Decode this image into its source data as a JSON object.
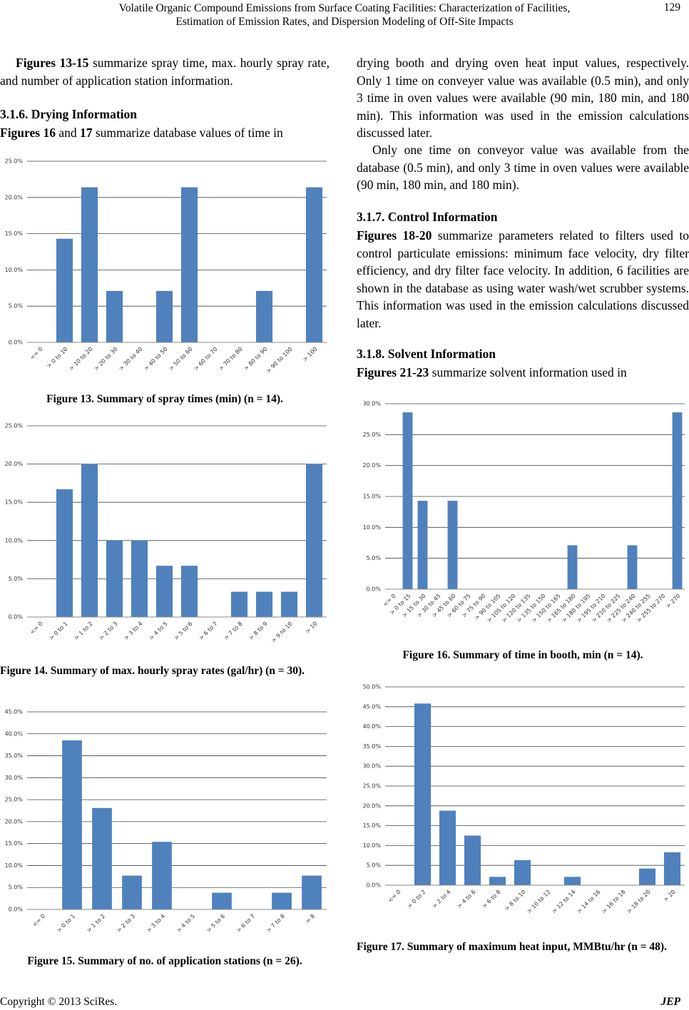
{
  "header": {
    "title": [
      "Volatile Organic Compound Emissions from Surface Coating Facilities: Characterization of Facilities,",
      "Estimation of Emission Rates, and Dispersion Modeling of Off-Site Impacts"
    ],
    "page": "129"
  },
  "left": {
    "p0": [
      "Figures 13-15",
      " summarize spray time, max. hourly spray rate, and number of application station information."
    ],
    "h0": "3.1.6. Drying Information",
    "p1": [
      "Figures 16",
      " and ",
      "17",
      " summarize database values of time in"
    ]
  },
  "right": {
    "p0": "drying booth and drying oven heat input values, respectively. Only 1 time on conveyer value was available (0.5 min), and only 3 time in oven values were available (90 min, 180 min, and 180 min). This information was used in the emission calculations discussed later.",
    "p1": "Only one time on conveyor value was available from the database (0.5 min), and only 3 time in oven values were available (90 min, 180 min, and 180 min).",
    "h0": "3.1.7. Control Information",
    "p2": [
      "Figures 18-20",
      " summarize parameters related to filters used to control particulate emissions: minimum face velocity, dry filter efficiency, and dry filter face velocity. In addition, 6 facilities are shown in the database as using water wash/wet scrubber systems. This information was used in the emission calculations discussed later."
    ],
    "h1": "3.1.8. Solvent Information",
    "p3": [
      "Figures 21-23",
      " summarize solvent information used in"
    ]
  },
  "footer": {
    "copyright": "Copyright © 2013 SciRes.",
    "journal": "JEP"
  },
  "chart_data": [
    {
      "type": "bar",
      "caption": "Figure 13. Summary of spray times (min) (n = 14).",
      "color": "#4f81bd",
      "grid": true,
      "categories": [
        "<= 0",
        "> 0 to 10",
        "> 10 to 20",
        "> 20 to 30",
        "> 30 to 40",
        "> 40 to 50",
        "> 50 to 60",
        "> 60 to 70",
        "> 70 to 80",
        "> 80 to 90",
        "> 90 to 100",
        "> 100"
      ],
      "values": [
        0,
        14.3,
        21.4,
        7.1,
        0,
        7.1,
        21.4,
        0,
        0,
        7.1,
        0,
        21.4
      ],
      "ylim": [
        0,
        25
      ],
      "yticks": [
        {
          "value": 0,
          "label": "0.0%"
        },
        {
          "value": 5,
          "label": "5.0%"
        },
        {
          "value": 10,
          "label": "10.0%"
        },
        {
          "value": 15,
          "label": "15.0%"
        },
        {
          "value": 20,
          "label": "20.0%"
        },
        {
          "value": 25,
          "label": "25.0%"
        }
      ]
    },
    {
      "type": "bar",
      "caption": "Figure 14. Summary of max. hourly spray rates (gal/hr) (n = 30).",
      "color": "#4f81bd",
      "grid": true,
      "categories": [
        "<= 0",
        "> 0 to 1",
        "> 1 to 2",
        "> 2 to 3",
        "> 3 to 4",
        "> 4 to 5",
        "> 5 to 6",
        "> 6 to 7",
        "> 7 to 8",
        "> 8 to 9",
        "> 9 to 10",
        "> 10"
      ],
      "values": [
        0,
        16.7,
        20,
        10,
        10,
        6.7,
        6.7,
        0,
        3.3,
        3.3,
        3.3,
        20
      ],
      "ylim": [
        0,
        25
      ],
      "yticks": [
        {
          "value": 0,
          "label": "0.0%"
        },
        {
          "value": 5,
          "label": "5.0%"
        },
        {
          "value": 10,
          "label": "10.0%"
        },
        {
          "value": 15,
          "label": "15.0%"
        },
        {
          "value": 20,
          "label": "20.0%"
        },
        {
          "value": 25,
          "label": "25.0%"
        }
      ]
    },
    {
      "type": "bar",
      "caption": "Figure 15. Summary of no. of application stations (n = 26).",
      "color": "#4f81bd",
      "grid": true,
      "categories": [
        "<= 0",
        "> 0 to 1",
        "> 1 to 2",
        "> 2 to 3",
        "> 3 to 4",
        "> 4 to 5",
        "> 5 to 6",
        "> 6 to 7",
        "> 7 to 8",
        "> 8"
      ],
      "values": [
        0,
        38.5,
        23.1,
        7.7,
        15.4,
        0,
        3.8,
        0,
        3.8,
        7.7
      ],
      "ylim": [
        0,
        45
      ],
      "yticks": [
        {
          "value": 0,
          "label": "0.0%"
        },
        {
          "value": 5,
          "label": "5.0%"
        },
        {
          "value": 10,
          "label": "10.0%"
        },
        {
          "value": 15,
          "label": "15.0%"
        },
        {
          "value": 20,
          "label": "20.0%"
        },
        {
          "value": 25,
          "label": "25.0%"
        },
        {
          "value": 30,
          "label": "30.0%"
        },
        {
          "value": 35,
          "label": "35.0%"
        },
        {
          "value": 40,
          "label": "40.0%"
        },
        {
          "value": 45,
          "label": "45.0%"
        }
      ]
    },
    {
      "type": "bar",
      "caption": "Figure 16. Summary of time in booth, min (n = 14).",
      "color": "#4f81bd",
      "grid": true,
      "categories": [
        "<= 0",
        "> 0 to 15",
        "> 15 to 30",
        "> 30 to 45",
        "> 45 to 60",
        "> 60 to 75",
        "> 75 to 90",
        "> 90 to 105",
        "> 105 to 120",
        "> 120 to 135",
        "> 135 to 150",
        "> 150 to 165",
        "> 165 to 180",
        "> 180 to 195",
        "> 195 to 210",
        "> 210 to 225",
        "> 225 to 240",
        "> 240 to 255",
        "> 255 to 270",
        "> 270"
      ],
      "values": [
        0,
        28.6,
        14.3,
        0,
        14.3,
        0,
        0,
        0,
        0,
        0,
        0,
        0,
        7.1,
        0,
        0,
        0,
        7.1,
        0,
        0,
        28.6
      ],
      "ylim": [
        0,
        30
      ],
      "yticks": [
        {
          "value": 0,
          "label": "0.0%"
        },
        {
          "value": 5,
          "label": "5.0%"
        },
        {
          "value": 10,
          "label": "10.0%"
        },
        {
          "value": 15,
          "label": "15.0%"
        },
        {
          "value": 20,
          "label": "20.0%"
        },
        {
          "value": 25,
          "label": "25.0%"
        },
        {
          "value": 30,
          "label": "30.0%"
        }
      ]
    },
    {
      "type": "bar",
      "caption": "Figure 17. Summary of maximum heat input, MMBtu/hr (n = 48).",
      "color": "#4f81bd",
      "grid": true,
      "categories": [
        "<= 0",
        "> 0 to 2",
        "> 2 to 4",
        "> 4 to 6",
        "> 6 to 8",
        "> 8 to 10",
        "> 10 to 12",
        "> 12 to 14",
        "> 14 to 16",
        "> 16 to 18",
        "> 18 to 20",
        "> 20"
      ],
      "values": [
        0,
        45.8,
        18.8,
        12.5,
        2.1,
        6.3,
        0,
        2.1,
        0,
        0,
        4.2,
        8.3
      ],
      "ylim": [
        0,
        50
      ],
      "yticks": [
        {
          "value": 0,
          "label": "0.0%"
        },
        {
          "value": 5,
          "label": "5.0%"
        },
        {
          "value": 10,
          "label": "10.0%"
        },
        {
          "value": 15,
          "label": "15.0%"
        },
        {
          "value": 20,
          "label": "20.0%"
        },
        {
          "value": 25,
          "label": "25.0%"
        },
        {
          "value": 30,
          "label": "30.0%"
        },
        {
          "value": 35,
          "label": "35.0%"
        },
        {
          "value": 40,
          "label": "40.0%"
        },
        {
          "value": 45,
          "label": "45.0%"
        },
        {
          "value": 50,
          "label": "50.0%"
        }
      ]
    }
  ]
}
